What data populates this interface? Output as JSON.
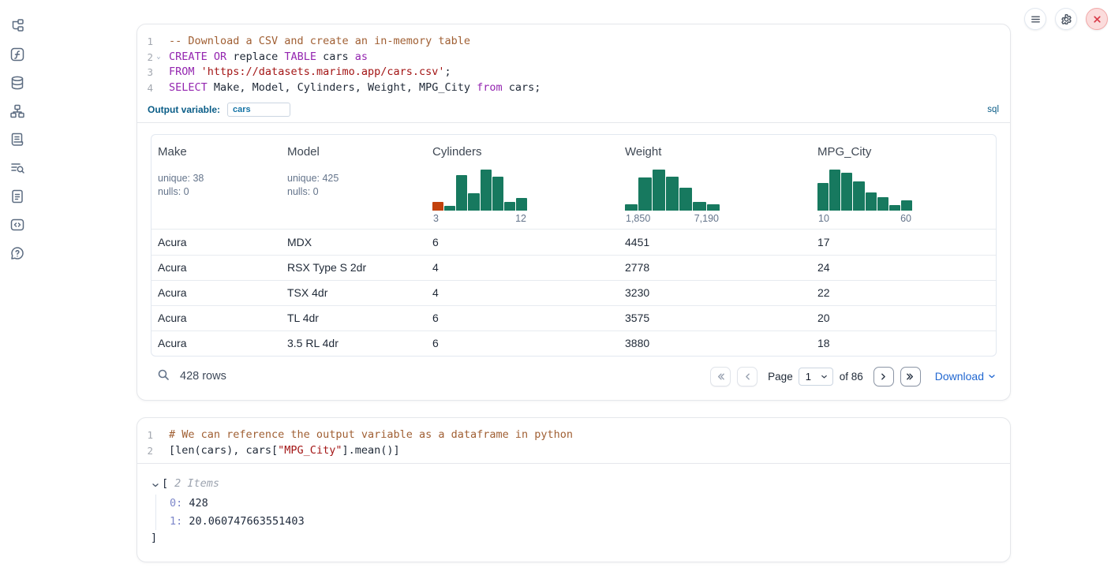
{
  "topbar": {
    "buttons": [
      "menu",
      "settings",
      "close"
    ]
  },
  "sidebar": {
    "items": [
      "file-tree",
      "function",
      "database",
      "network",
      "scratchpad-scroll",
      "logs-search",
      "documentation",
      "snippets",
      "help"
    ]
  },
  "sql_cell": {
    "lines": [
      {
        "n": "1",
        "tokens": [
          {
            "t": "-- Download a CSV and create an in-memory table",
            "c": "comment"
          }
        ]
      },
      {
        "n": "2",
        "fold": true,
        "tokens": [
          {
            "t": "CREATE",
            "c": "kw"
          },
          {
            "t": " "
          },
          {
            "t": "OR",
            "c": "kw"
          },
          {
            "t": " replace "
          },
          {
            "t": "TABLE",
            "c": "kw"
          },
          {
            "t": " cars "
          },
          {
            "t": "as",
            "c": "kw"
          }
        ]
      },
      {
        "n": "3",
        "tokens": [
          {
            "t": "FROM",
            "c": "kw"
          },
          {
            "t": " "
          },
          {
            "t": "'https://datasets.marimo.app/cars.csv'",
            "c": "str"
          },
          {
            "t": ";"
          }
        ]
      },
      {
        "n": "4",
        "tokens": [
          {
            "t": "SELECT",
            "c": "kw"
          },
          {
            "t": " Make, Model, Cylinders, Weight, MPG_City "
          },
          {
            "t": "from",
            "c": "kw"
          },
          {
            "t": " cars;"
          }
        ]
      }
    ],
    "output_variable_label": "Output variable:",
    "output_variable_value": "cars",
    "language_badge": "sql",
    "table": {
      "columns": [
        {
          "name": "Make",
          "type": "stats",
          "unique": "unique: 38",
          "nulls": "nulls: 0"
        },
        {
          "name": "Model",
          "type": "stats",
          "unique": "unique: 425",
          "nulls": "nulls: 0"
        },
        {
          "name": "Cylinders",
          "type": "histogram",
          "min_label": "3",
          "max_label": "12",
          "bars": [
            0.22,
            0.12,
            0.87,
            0.42,
            1.0,
            0.82,
            0.22,
            0.3
          ],
          "highlight_first": true
        },
        {
          "name": "Weight",
          "type": "histogram",
          "min_label": "1,850",
          "max_label": "7,190",
          "bars": [
            0.15,
            0.8,
            1.0,
            0.82,
            0.55,
            0.22,
            0.15
          ]
        },
        {
          "name": "MPG_City",
          "type": "histogram",
          "min_label": "10",
          "max_label": "60",
          "bars": [
            0.68,
            1.0,
            0.92,
            0.72,
            0.45,
            0.32,
            0.14,
            0.25
          ]
        }
      ],
      "rows": [
        [
          "Acura",
          "MDX",
          "6",
          "4451",
          "17"
        ],
        [
          "Acura",
          "RSX Type S 2dr",
          "4",
          "2778",
          "24"
        ],
        [
          "Acura",
          "TSX 4dr",
          "4",
          "3230",
          "22"
        ],
        [
          "Acura",
          "TL 4dr",
          "6",
          "3575",
          "20"
        ],
        [
          "Acura",
          "3.5 RL 4dr",
          "6",
          "3880",
          "18"
        ]
      ],
      "footer": {
        "row_count": "428 rows",
        "page_label": "Page",
        "page_value": "1",
        "of_label": "of 86",
        "download_label": "Download"
      }
    }
  },
  "python_cell": {
    "lines": [
      {
        "n": "1",
        "tokens": [
          {
            "t": "# We can reference the output variable as a dataframe in python",
            "c": "comment"
          }
        ]
      },
      {
        "n": "2",
        "tokens": [
          {
            "t": "[len(cars), cars["
          },
          {
            "t": "\"MPG_City\"",
            "c": "str"
          },
          {
            "t": "].mean()]"
          }
        ]
      }
    ],
    "output": {
      "open_bracket": "[",
      "items_label": "2 Items",
      "entries": [
        {
          "key": "0",
          "value": "428"
        },
        {
          "key": "1",
          "value": "20.060747663551403"
        }
      ],
      "close_bracket": "]"
    }
  },
  "colors": {
    "histogram_green": "#17795f",
    "histogram_highlight": "#c2410c",
    "accent_blue": "#0a5d87",
    "link_blue": "#2268d1"
  }
}
